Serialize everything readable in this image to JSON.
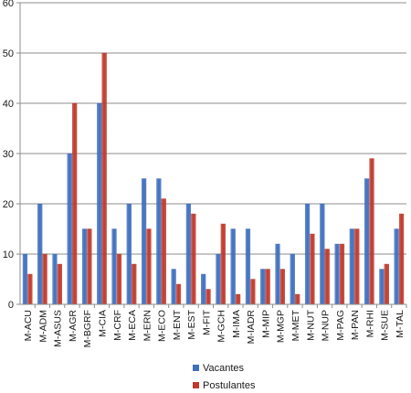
{
  "chart_data": {
    "type": "bar",
    "title": "",
    "xlabel": "",
    "ylabel": "",
    "ylim": [
      0,
      60
    ],
    "yticks": [
      0,
      10,
      20,
      30,
      40,
      50,
      60
    ],
    "grid": true,
    "legend_position": "bottom",
    "categories": [
      "M-ACU",
      "M-ADM",
      "M-ASUS",
      "M-AGR",
      "M-BGRF",
      "M-CIA",
      "M-CRF",
      "M-ECA",
      "M-ERN",
      "M-ECO",
      "M-ENT",
      "M-EST",
      "M-FIT",
      "M-GCH",
      "M-IMA",
      "M-IADR",
      "M-MIP",
      "M-MGP",
      "M-MET",
      "M-NUT",
      "M-NUP",
      "M-PAG",
      "M-PAN",
      "M-RHI",
      "M-SUE",
      "M-TAL"
    ],
    "series": [
      {
        "name": "Vacantes",
        "color": "#3f6fbf",
        "values": [
          10,
          20,
          10,
          30,
          15,
          40,
          15,
          20,
          25,
          25,
          7,
          20,
          6,
          10,
          15,
          15,
          7,
          12,
          10,
          20,
          20,
          12,
          15,
          25,
          7,
          15
        ]
      },
      {
        "name": "Postulantes",
        "color": "#c0392b",
        "values": [
          6,
          10,
          8,
          40,
          15,
          50,
          10,
          8,
          15,
          21,
          4,
          18,
          3,
          16,
          2,
          5,
          7,
          7,
          2,
          14,
          11,
          12,
          15,
          29,
          8,
          18
        ]
      }
    ]
  }
}
